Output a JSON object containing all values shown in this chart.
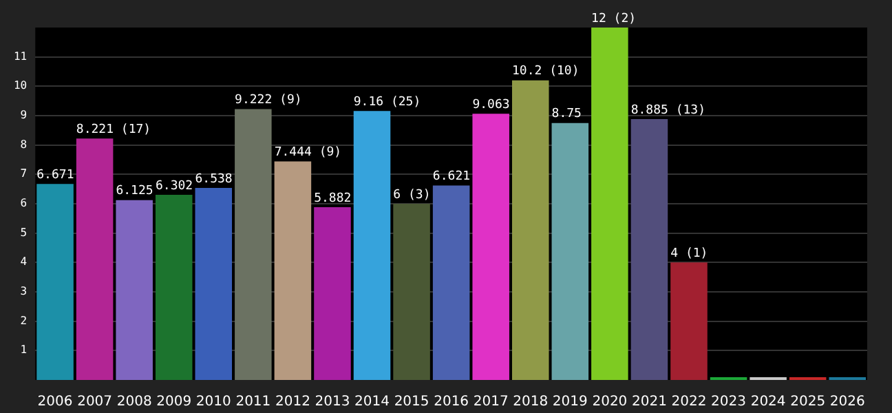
{
  "chart_data": {
    "type": "bar",
    "categories": [
      "2006",
      "2007",
      "2008",
      "2009",
      "2010",
      "2011",
      "2012",
      "2013",
      "2014",
      "2015",
      "2016",
      "2017",
      "2018",
      "2019",
      "2020",
      "2021",
      "2022",
      "2023",
      "2024",
      "2025",
      "2026"
    ],
    "values": [
      6.671,
      8.221,
      6.125,
      6.302,
      6.538,
      9.222,
      7.444,
      5.882,
      9.16,
      6,
      6.621,
      9.063,
      10.2,
      8.75,
      12,
      8.885,
      4,
      0,
      0,
      0,
      0
    ],
    "colors": [
      "#1c90a8",
      "#b22594",
      "#7f66c0",
      "#1c742e",
      "#3a5fb8",
      "#6b7262",
      "#b69a80",
      "#a81fa2",
      "#36a3dc",
      "#4a5834",
      "#4c62b0",
      "#e031c6",
      "#909a48",
      "#68a4a8",
      "#7ecb22",
      "#524e7c",
      "#a22030",
      "#1ca838",
      "#c8c8c8",
      "#c82828",
      "#1c7a9c"
    ],
    "value_labels": [
      "6.671",
      "8.221 (17)",
      "6.125",
      "6.302",
      "6.538",
      "9.222 (9)",
      "7.444 (9)",
      "5.882",
      "9.16 (25)",
      "6 (3)",
      "6.621",
      "9.063",
      "10.2 (10)",
      "8.75",
      "12 (2)",
      "8.885 (13)",
      "4 (1)",
      null,
      null,
      null,
      null
    ],
    "ylim": [
      0,
      12
    ],
    "yticks": [
      1,
      2,
      3,
      4,
      5,
      6,
      7,
      8,
      9,
      10,
      11
    ],
    "grid": "y",
    "legend": false
  }
}
